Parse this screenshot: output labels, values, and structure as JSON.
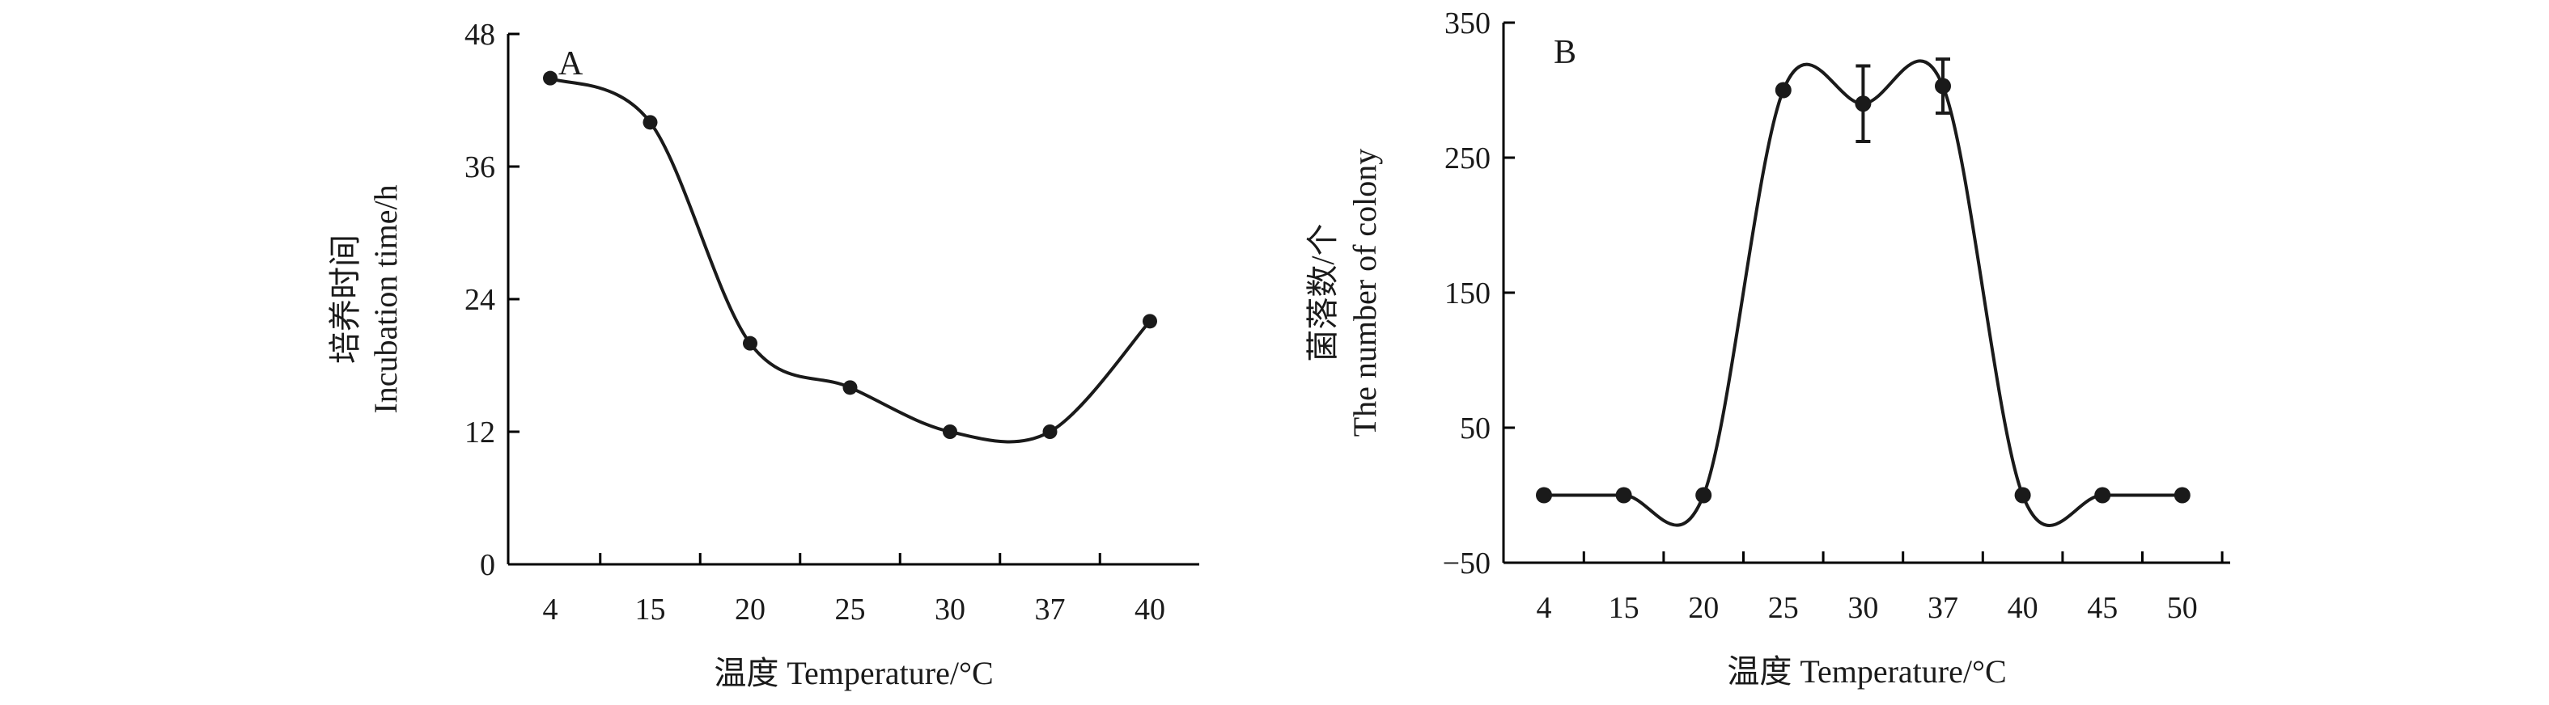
{
  "chart_data": [
    {
      "type": "line",
      "panel_label": "A",
      "categories": [
        "4",
        "15",
        "20",
        "25",
        "30",
        "37",
        "40"
      ],
      "values": [
        44,
        40,
        20,
        16,
        12,
        12,
        22
      ],
      "xlabel": "温度 Temperature/°C",
      "ylabel_cn": "培养时间",
      "ylabel_en": "Incubation time/h",
      "ylim": [
        0,
        48
      ],
      "yticks": [
        "0",
        "12",
        "24",
        "36",
        "48"
      ],
      "grid": false
    },
    {
      "type": "line",
      "panel_label": "B",
      "categories": [
        "4",
        "15",
        "20",
        "25",
        "30",
        "37",
        "40",
        "45",
        "50"
      ],
      "values": [
        0,
        0,
        0,
        300,
        290,
        303,
        0,
        0,
        0
      ],
      "errors": [
        0,
        0,
        0,
        0,
        28,
        20,
        0,
        0,
        0
      ],
      "xlabel": "温度 Temperature/°C",
      "ylabel_cn": "菌落数/个",
      "ylabel_en": "The number of colony",
      "ylim": [
        -50,
        350
      ],
      "yticks": [
        "−50",
        "50",
        "150",
        "250",
        "350"
      ],
      "grid": false
    }
  ]
}
